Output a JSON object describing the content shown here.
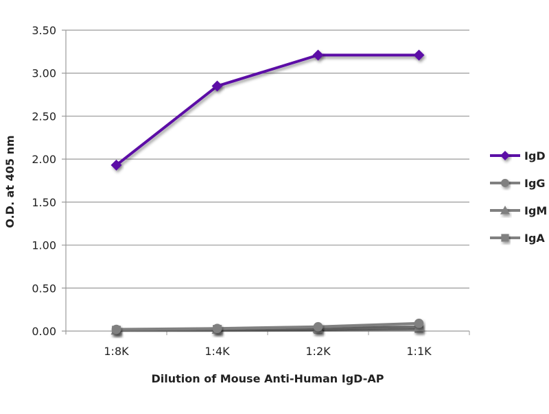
{
  "chart_data": {
    "type": "line",
    "title": "",
    "xlabel": "Dilution of Mouse Anti-Human IgD-AP",
    "ylabel": "O.D. at 405 nm",
    "categories": [
      "1:8K",
      "1:4K",
      "1:2K",
      "1:1K"
    ],
    "ylim": [
      0,
      3.5
    ],
    "yticks": [
      "0.00",
      "0.50",
      "1.00",
      "1.50",
      "2.00",
      "2.50",
      "3.00",
      "3.50"
    ],
    "grid": true,
    "legend_position": "right",
    "series": [
      {
        "name": "IgD",
        "values": [
          1.93,
          2.85,
          3.21,
          3.21
        ],
        "color": "#5b0fa6",
        "marker": "diamond"
      },
      {
        "name": "IgG",
        "values": [
          0.02,
          0.03,
          0.05,
          0.09
        ],
        "color": "#808080",
        "marker": "circle"
      },
      {
        "name": "IgM",
        "values": [
          0.01,
          0.02,
          0.03,
          0.05
        ],
        "color": "#808080",
        "marker": "triangle"
      },
      {
        "name": "IgA",
        "values": [
          0.01,
          0.02,
          0.02,
          0.03
        ],
        "color": "#808080",
        "marker": "square"
      }
    ]
  }
}
